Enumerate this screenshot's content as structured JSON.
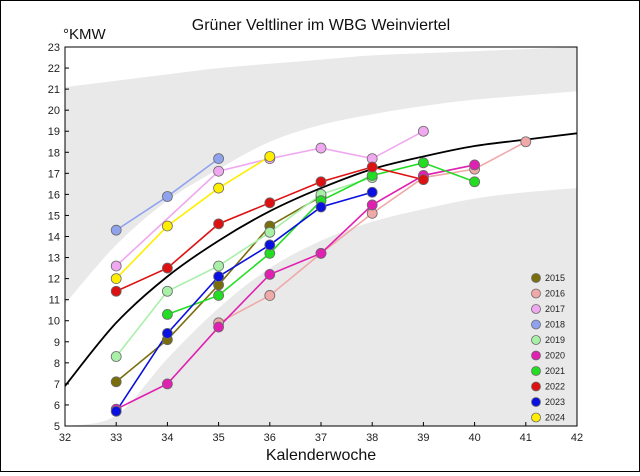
{
  "chart_data": {
    "type": "line",
    "title": "Grüner Veltliner im WBG Weinviertel",
    "xlabel": "Kalenderwoche",
    "ylabel": "°KMW",
    "xlim": [
      32,
      42
    ],
    "ylim": [
      5,
      23
    ],
    "x_ticks": [
      32,
      33,
      34,
      35,
      36,
      37,
      38,
      39,
      40,
      41,
      42
    ],
    "y_ticks": [
      5,
      6,
      7,
      8,
      9,
      10,
      11,
      12,
      13,
      14,
      15,
      16,
      17,
      18,
      19,
      20,
      21,
      22,
      23
    ],
    "legend_position": "bottom-right",
    "grid": false,
    "series": [
      {
        "name": "2015",
        "color": "#7a6e0c",
        "x": [
          33,
          34,
          35,
          36,
          37
        ],
        "y": [
          7.1,
          9.1,
          11.7,
          14.5,
          15.9
        ]
      },
      {
        "name": "2016",
        "color": "#f0a8a8",
        "x": [
          35,
          36,
          37,
          38,
          39,
          40,
          41
        ],
        "y": [
          9.9,
          11.2,
          13.2,
          15.1,
          16.8,
          17.2,
          18.5
        ]
      },
      {
        "name": "2017",
        "color": "#f0a8f0",
        "x": [
          33,
          35,
          36,
          37,
          38,
          39
        ],
        "y": [
          12.6,
          17.1,
          17.7,
          18.2,
          17.7,
          19.0
        ]
      },
      {
        "name": "2018",
        "color": "#8fa2ee",
        "x": [
          33,
          34,
          35
        ],
        "y": [
          14.3,
          15.9,
          17.7
        ]
      },
      {
        "name": "2019",
        "color": "#a8f0a8",
        "x": [
          33,
          34,
          35,
          36,
          37,
          38
        ],
        "y": [
          8.3,
          11.4,
          12.6,
          14.2,
          16.0,
          16.8
        ]
      },
      {
        "name": "2020",
        "color": "#e020b0",
        "x": [
          33,
          34,
          35,
          36,
          37,
          38,
          39,
          40
        ],
        "y": [
          5.8,
          7.0,
          9.7,
          12.2,
          13.2,
          15.5,
          16.9,
          17.4
        ]
      },
      {
        "name": "2021",
        "color": "#22dd22",
        "x": [
          34,
          35,
          36,
          37,
          38,
          39,
          40
        ],
        "y": [
          10.3,
          11.2,
          13.2,
          15.7,
          16.9,
          17.5,
          16.6
        ]
      },
      {
        "name": "2022",
        "color": "#dd1111",
        "x": [
          33,
          34,
          35,
          36,
          37,
          38,
          39
        ],
        "y": [
          11.4,
          12.5,
          14.6,
          15.6,
          16.6,
          17.3,
          16.7
        ]
      },
      {
        "name": "2023",
        "color": "#0a10dd",
        "x": [
          33,
          34,
          35,
          36,
          37,
          38
        ],
        "y": [
          5.7,
          9.4,
          12.1,
          13.6,
          15.4,
          16.1
        ]
      },
      {
        "name": "2024",
        "color": "#ffee00",
        "x": [
          33,
          34,
          35,
          36
        ],
        "y": [
          12.0,
          14.5,
          16.3,
          17.8
        ]
      }
    ],
    "trend_curve": {
      "color": "#000000",
      "x": [
        32,
        33,
        34,
        35,
        36,
        37,
        38,
        39,
        40,
        41,
        42
      ],
      "y": [
        6.9,
        9.9,
        12.1,
        13.8,
        15.2,
        16.3,
        17.2,
        17.8,
        18.3,
        18.6,
        18.9
      ]
    },
    "bands": [
      {
        "color": "#e9e9e9",
        "upper": [
          21.1,
          21.4,
          21.7,
          22.0,
          22.2,
          22.4,
          22.6,
          22.7,
          22.8,
          22.9,
          23.0
        ],
        "lower": [
          10.8,
          13.6,
          15.7,
          17.2,
          18.5,
          19.3,
          19.8,
          20.2,
          20.5,
          20.7,
          20.9
        ]
      },
      {
        "color": "#e9e9e9",
        "upper": [
          5.0,
          5.5,
          8.2,
          10.6,
          12.5,
          13.8,
          14.7,
          15.3,
          15.8,
          16.1,
          16.3
        ],
        "lower": [
          5.0,
          5.0,
          5.0,
          5.0,
          5.0,
          5.0,
          5.0,
          5.0,
          5.0,
          5.0,
          5.0
        ]
      }
    ]
  }
}
